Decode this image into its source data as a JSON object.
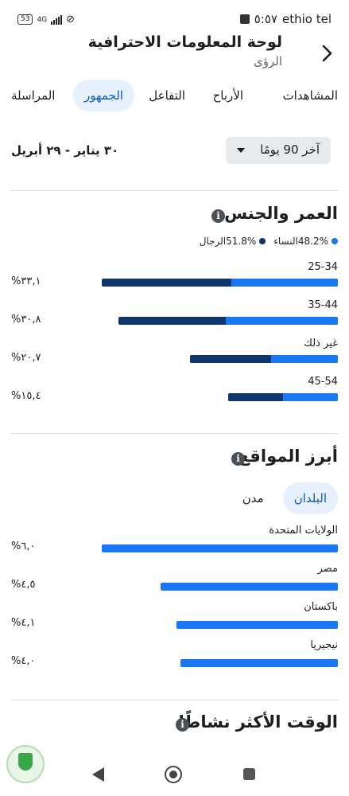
{
  "status_bar": {
    "carrier": "ethio tel",
    "time": "٥:٥٧",
    "battery": "53",
    "network": "4G"
  },
  "header": {
    "title": "لوحة المعلومات الاحترافية",
    "subtitle": "الرؤى",
    "back_icon": "chevron-right-icon"
  },
  "tabs": [
    {
      "label": "المشاهدات",
      "active": false
    },
    {
      "label": "الأرباح",
      "active": false
    },
    {
      "label": "التفاعل",
      "active": false
    },
    {
      "label": "الجمهور",
      "active": true
    },
    {
      "label": "المراسلة",
      "active": false
    }
  ],
  "filter": {
    "dropdown_label": "آخر 90 يومًا",
    "date_range": "٣٠ يناير - ٢٩ أبريل"
  },
  "age_gender": {
    "title": "العمر والجنس",
    "legend": {
      "women_label": "48.2%النساء",
      "men_label": "51.8%الرجال"
    },
    "rows": [
      {
        "label": "25-34",
        "value": "%٣٣,١",
        "total": 33.1,
        "women_fraction": 0.45
      },
      {
        "label": "35-44",
        "value": "%٣٠,٨",
        "total": 30.8,
        "women_fraction": 0.51
      },
      {
        "label": "غير ذلك",
        "value": "%٢٠,٧",
        "total": 20.7,
        "women_fraction": 0.45
      },
      {
        "label": "45-54",
        "value": "%١٥,٤",
        "total": 15.4,
        "women_fraction": 0.5
      }
    ]
  },
  "locations": {
    "title": "أبرز المواقع",
    "pills": [
      {
        "label": "البلدان",
        "active": true
      },
      {
        "label": "مدن",
        "active": false
      }
    ],
    "rows": [
      {
        "label": "الولايات المتحدة",
        "value": "%٦,٠",
        "total": 6.0
      },
      {
        "label": "مصر",
        "value": "%٤,٥",
        "total": 4.5
      },
      {
        "label": "باكستان",
        "value": "%٤,١",
        "total": 4.1
      },
      {
        "label": "نيجيريا",
        "value": "%٤,٠",
        "total": 4.0
      }
    ]
  },
  "active_times": {
    "title": "الوقت الأكثر نشاطًا"
  },
  "colors": {
    "women": "#1877f2",
    "men": "#0d3570",
    "active_tab_bg": "#e7f0fd",
    "active_tab_text": "#0a58ca"
  }
}
